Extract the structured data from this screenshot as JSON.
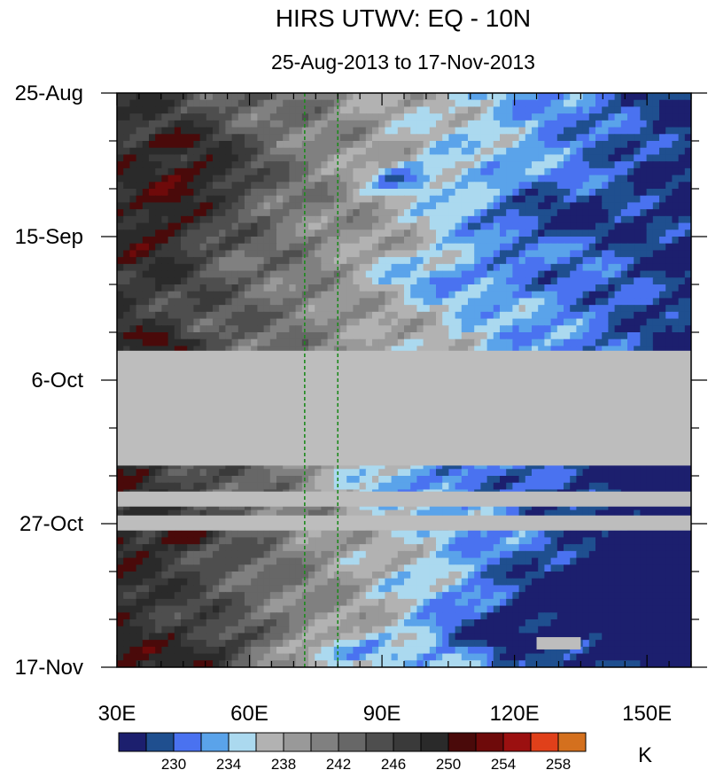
{
  "chart_data": {
    "type": "heatmap",
    "title": "HIRS UTWV: EQ - 10N",
    "subtitle": "25-Aug-2013 to 17-Nov-2013",
    "xlabel": "",
    "ylabel": "",
    "xlim": [
      30,
      160
    ],
    "x_ticks": [
      {
        "value": 30,
        "label": "30E"
      },
      {
        "value": 60,
        "label": "60E"
      },
      {
        "value": 90,
        "label": "90E"
      },
      {
        "value": 120,
        "label": "120E"
      },
      {
        "value": 150,
        "label": "150E"
      }
    ],
    "y_ticks": [
      {
        "day": 0,
        "label": "25-Aug"
      },
      {
        "day": 21,
        "label": "15-Sep"
      },
      {
        "day": 42,
        "label": "6-Oct"
      },
      {
        "day": 63,
        "label": "27-Oct"
      },
      {
        "day": 84,
        "label": "17-Nov"
      }
    ],
    "y_direction": "time increases downward",
    "reference_lines": {
      "longitudes": [
        72.5,
        80
      ],
      "color": "#1e8a1e",
      "style": "dashed"
    },
    "missing_data_color": "#bdbdbd",
    "missing_data_bands": [
      {
        "from_day": 37.7,
        "to_day": 54.5,
        "lon_from": 30,
        "lon_to": 160
      },
      {
        "from_day": 58.3,
        "to_day": 60.5,
        "lon_from": 30,
        "lon_to": 160
      },
      {
        "from_day": 61.8,
        "to_day": 64.0,
        "lon_from": 30,
        "lon_to": 160
      },
      {
        "from_day": 79.6,
        "to_day": 81.4,
        "lon_from": 125,
        "lon_to": 135
      }
    ],
    "colorbar": {
      "units": "K",
      "labels": [
        "230",
        "234",
        "238",
        "242",
        "246",
        "250",
        "254",
        "258"
      ],
      "colors": [
        "#1c1f6e",
        "#1f4f8f",
        "#4a72f0",
        "#5aa3ea",
        "#abd9ef",
        "#b2b2b2",
        "#999999",
        "#808080",
        "#676767",
        "#4e4e4e",
        "#3a3a3a",
        "#2a2a2a",
        "#4a0a0a",
        "#6e0a0a",
        "#9b1010",
        "#e0401a",
        "#d4701e"
      ]
    },
    "field_summary": "Cold/moist (blue, 230-238 K) band east of ~72E across the period, strongest near 95E in early Sep and 120-145E in Nov; warm/dry (dark grey to red, 250-258 K) west of ~60E with red maxima near 44E"
  }
}
